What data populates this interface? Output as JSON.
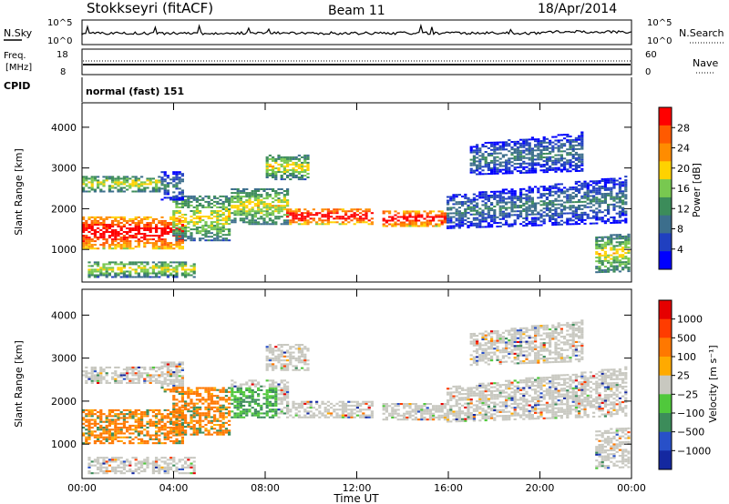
{
  "header": {
    "station": "Stokkseyri (fitACF)",
    "beam": "Beam 11",
    "date": "18/Apr/2014"
  },
  "noise_panel": {
    "left_label": "N.Sky",
    "left_ticks": [
      "10^5",
      "10^0"
    ],
    "right_ticks": [
      "10^5",
      "10^0"
    ],
    "right_label": "N.Search"
  },
  "freq_panel": {
    "left_label_1": "Freq.",
    "left_label_2": "[MHz]",
    "left_ticks": [
      "18",
      "8"
    ],
    "right_ticks": [
      "60",
      "0"
    ],
    "right_label": "Nave"
  },
  "cpid": {
    "label": "CPID",
    "value": "normal (fast) 151"
  },
  "chart_data": [
    {
      "type": "heatmap",
      "title": "",
      "ylabel": "Slant Range [km]",
      "ylim": [
        200,
        4600
      ],
      "yticks": [
        "1000",
        "2000",
        "3000",
        "4000"
      ],
      "xlim_hours": [
        0,
        24
      ],
      "xticks": [
        "00:00",
        "04:00",
        "08:00",
        "12:00",
        "16:00",
        "20:00",
        "00:00"
      ],
      "colorbar": {
        "label": "Power [dB]",
        "ticks": [
          "4",
          "8",
          "12",
          "16",
          "20",
          "24",
          "28"
        ],
        "colors": [
          "#0000ff",
          "#2040c0",
          "#3c6e8c",
          "#3c8c5a",
          "#78c850",
          "#ffd200",
          "#ff8c00",
          "#ff5a00",
          "#ff0000"
        ]
      }
    },
    {
      "type": "heatmap",
      "title": "",
      "ylabel": "Slant Range [km]",
      "ylim": [
        200,
        4600
      ],
      "yticks": [
        "1000",
        "2000",
        "3000",
        "4000"
      ],
      "xlim_hours": [
        0,
        24
      ],
      "xticks": [
        "00:00",
        "04:00",
        "08:00",
        "12:00",
        "16:00",
        "20:00",
        "00:00"
      ],
      "xlabel": "Time UT",
      "colorbar": {
        "label": "Velocity [m s⁻¹]",
        "ticks": [
          "1000",
          "500",
          "100",
          "25",
          "−25",
          "−100",
          "−500",
          "−1000"
        ],
        "colors": [
          "#1428a0",
          "#2850c8",
          "#3c8c5a",
          "#50c83c",
          "#c8c8c0",
          "#ffaa00",
          "#ff7800",
          "#ff3c00",
          "#e60000"
        ]
      }
    }
  ]
}
